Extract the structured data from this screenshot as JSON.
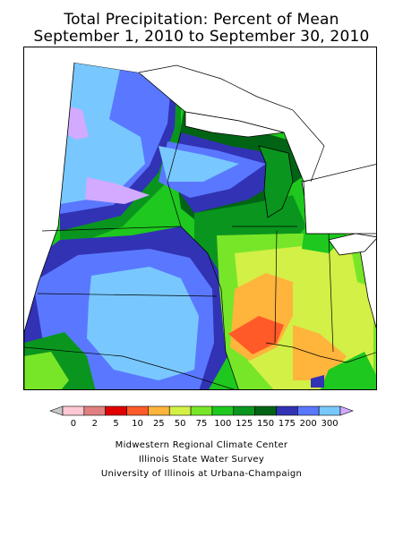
{
  "title": {
    "line1": "Total Precipitation: Percent of Mean",
    "line2": "September 1, 2010 to September 30, 2010"
  },
  "legend": {
    "bins": [
      {
        "color": "#c8c8c8"
      },
      {
        "color": "#ffc8d2"
      },
      {
        "color": "#e08080"
      },
      {
        "color": "#e00000"
      },
      {
        "color": "#ff5a28"
      },
      {
        "color": "#ffb43c"
      },
      {
        "color": "#d2f046"
      },
      {
        "color": "#78e628"
      },
      {
        "color": "#1ec81e"
      },
      {
        "color": "#0a961e"
      },
      {
        "color": "#006414"
      },
      {
        "color": "#3232b4"
      },
      {
        "color": "#5a78ff"
      },
      {
        "color": "#78c8ff"
      },
      {
        "color": "#d2aaff"
      }
    ],
    "ticks": [
      "0",
      "2",
      "5",
      "10",
      "25",
      "50",
      "75",
      "100",
      "125",
      "150",
      "175",
      "200",
      "300"
    ]
  },
  "credits": {
    "line1": "Midwestern Regional Climate Center",
    "line2": "Illinois State Water Survey",
    "line3": "University of Illinois at Urbana-Champaign"
  },
  "colors": {
    "violet": "#d2aaff",
    "light_blue": "#78c8ff",
    "blue": "#5a78ff",
    "dark_blue": "#3232b4",
    "dark_green": "#006414",
    "green": "#0a961e",
    "bright_green": "#1ec81e",
    "light_green": "#78e628",
    "yellow_green": "#d2f046",
    "orange": "#ffb43c",
    "red_orange": "#ff5a28"
  }
}
